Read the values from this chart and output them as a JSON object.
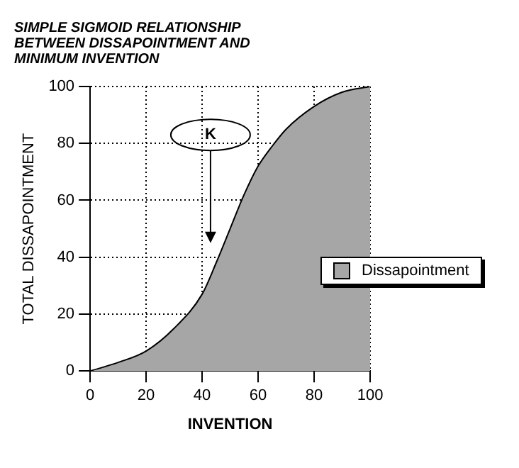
{
  "chart_data": {
    "type": "area",
    "title": [
      "SIMPLE SIGMOID RELATIONSHIP",
      "BETWEEN DISSAPOINTMENT AND",
      "MINIMUM INVENTION"
    ],
    "xlabel": "INVENTION",
    "ylabel": "TOTAL DISSAPOINTMENT",
    "x": [
      0,
      10,
      20,
      30,
      40,
      45,
      50,
      55,
      60,
      65,
      70,
      80,
      90,
      100
    ],
    "series": [
      {
        "name": "Dissapointment",
        "color": "#a6a6a6",
        "values": [
          0,
          3,
          7,
          15,
          27,
          38,
          50,
          62,
          72,
          79,
          85,
          93,
          98,
          100
        ]
      }
    ],
    "xlim": [
      0,
      100
    ],
    "ylim": [
      0,
      100
    ],
    "xticks": [
      0,
      20,
      40,
      60,
      80,
      100
    ],
    "yticks": [
      0,
      20,
      40,
      60,
      80,
      100
    ],
    "grid": true,
    "legend": "right",
    "marker": "none",
    "annotations": [
      "K"
    ]
  }
}
